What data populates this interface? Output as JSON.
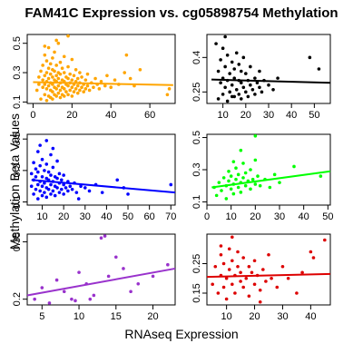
{
  "figure": {
    "title": "FAM41C Expression vs. cg05898754 Methylation",
    "ylabel": "Methylation Beta Values",
    "xlabel": "RNAseq Expression"
  },
  "chart_data": [
    {
      "type": "scatter",
      "color": "#FFA500",
      "xlim": [
        -3,
        73
      ],
      "ylim": [
        0.09,
        0.56
      ],
      "xticks": [
        0,
        20,
        40,
        60
      ],
      "yticks": [
        0.1,
        0.3,
        0.5
      ],
      "fit": [
        [
          0,
          0.235
        ],
        [
          72,
          0.215
        ]
      ],
      "points": [
        [
          2,
          0.18
        ],
        [
          3,
          0.22
        ],
        [
          3,
          0.27
        ],
        [
          4,
          0.12
        ],
        [
          4,
          0.31
        ],
        [
          5,
          0.2
        ],
        [
          5,
          0.25
        ],
        [
          5,
          0.35
        ],
        [
          6,
          0.15
        ],
        [
          6,
          0.22
        ],
        [
          6,
          0.28
        ],
        [
          6,
          0.42
        ],
        [
          7,
          0.11
        ],
        [
          7,
          0.19
        ],
        [
          7,
          0.24
        ],
        [
          7,
          0.3
        ],
        [
          7,
          0.38
        ],
        [
          8,
          0.14
        ],
        [
          8,
          0.21
        ],
        [
          8,
          0.26
        ],
        [
          8,
          0.33
        ],
        [
          8,
          0.47
        ],
        [
          9,
          0.13
        ],
        [
          9,
          0.18
        ],
        [
          9,
          0.23
        ],
        [
          9,
          0.29
        ],
        [
          9,
          0.36
        ],
        [
          10,
          0.12
        ],
        [
          10,
          0.17
        ],
        [
          10,
          0.22
        ],
        [
          10,
          0.27
        ],
        [
          10,
          0.32
        ],
        [
          10,
          0.4
        ],
        [
          11,
          0.15
        ],
        [
          11,
          0.2
        ],
        [
          11,
          0.25
        ],
        [
          11,
          0.31
        ],
        [
          11,
          0.44
        ],
        [
          12,
          0.14
        ],
        [
          12,
          0.19
        ],
        [
          12,
          0.24
        ],
        [
          12,
          0.28
        ],
        [
          12,
          0.35
        ],
        [
          13,
          0.16
        ],
        [
          13,
          0.21
        ],
        [
          13,
          0.26
        ],
        [
          13,
          0.3
        ],
        [
          13,
          0.5
        ],
        [
          14,
          0.13
        ],
        [
          14,
          0.18
        ],
        [
          14,
          0.23
        ],
        [
          14,
          0.29
        ],
        [
          14,
          0.37
        ],
        [
          15,
          0.15
        ],
        [
          15,
          0.2
        ],
        [
          15,
          0.25
        ],
        [
          15,
          0.33
        ],
        [
          16,
          0.14
        ],
        [
          16,
          0.19
        ],
        [
          16,
          0.24
        ],
        [
          16,
          0.3
        ],
        [
          16,
          0.41
        ],
        [
          17,
          0.17
        ],
        [
          17,
          0.22
        ],
        [
          17,
          0.27
        ],
        [
          18,
          0.15
        ],
        [
          18,
          0.21
        ],
        [
          18,
          0.26
        ],
        [
          18,
          0.34
        ],
        [
          19,
          0.18
        ],
        [
          19,
          0.23
        ],
        [
          19,
          0.29
        ],
        [
          20,
          0.14
        ],
        [
          20,
          0.2
        ],
        [
          20,
          0.25
        ],
        [
          20,
          0.39
        ],
        [
          21,
          0.17
        ],
        [
          21,
          0.22
        ],
        [
          21,
          0.28
        ],
        [
          22,
          0.19
        ],
        [
          22,
          0.24
        ],
        [
          22,
          0.32
        ],
        [
          23,
          0.16
        ],
        [
          23,
          0.21
        ],
        [
          23,
          0.26
        ],
        [
          24,
          0.18
        ],
        [
          24,
          0.23
        ],
        [
          24,
          0.3
        ],
        [
          25,
          0.2
        ],
        [
          25,
          0.27
        ],
        [
          26,
          0.17
        ],
        [
          26,
          0.22
        ],
        [
          27,
          0.19
        ],
        [
          27,
          0.25
        ],
        [
          28,
          0.21
        ],
        [
          28,
          0.29
        ],
        [
          29,
          0.18
        ],
        [
          30,
          0.23
        ],
        [
          31,
          0.2
        ],
        [
          32,
          0.26
        ],
        [
          33,
          0.22
        ],
        [
          34,
          0.19
        ],
        [
          35,
          0.24
        ],
        [
          37,
          0.21
        ],
        [
          38,
          0.28
        ],
        [
          40,
          0.2
        ],
        [
          42,
          0.25
        ],
        [
          44,
          0.22
        ],
        [
          47,
          0.3
        ],
        [
          48,
          0.42
        ],
        [
          50,
          0.26
        ],
        [
          52,
          0.21
        ],
        [
          55,
          0.32
        ],
        [
          69,
          0.15
        ],
        [
          70,
          0.19
        ],
        [
          18,
          0.55
        ],
        [
          12,
          0.52
        ],
        [
          6,
          0.48
        ]
      ]
    },
    {
      "type": "scatter",
      "color": "#000000",
      "xlim": [
        3,
        57
      ],
      "ylim": [
        0.2,
        0.5
      ],
      "xticks": [
        10,
        20,
        30,
        40,
        50
      ],
      "yticks": [
        0.25,
        0.4
      ],
      "fit": [
        [
          5,
          0.304
        ],
        [
          57,
          0.29
        ]
      ],
      "points": [
        [
          8,
          0.22
        ],
        [
          8,
          0.34
        ],
        [
          9,
          0.29
        ],
        [
          9,
          0.39
        ],
        [
          10,
          0.24
        ],
        [
          10,
          0.31
        ],
        [
          10,
          0.44
        ],
        [
          11,
          0.27
        ],
        [
          11,
          0.36
        ],
        [
          12,
          0.21
        ],
        [
          12,
          0.3
        ],
        [
          12,
          0.41
        ],
        [
          13,
          0.25
        ],
        [
          13,
          0.33
        ],
        [
          14,
          0.28
        ],
        [
          14,
          0.38
        ],
        [
          15,
          0.23
        ],
        [
          15,
          0.31
        ],
        [
          15,
          0.35
        ],
        [
          16,
          0.26
        ],
        [
          16,
          0.42
        ],
        [
          17,
          0.24
        ],
        [
          17,
          0.3
        ],
        [
          17,
          0.37
        ],
        [
          18,
          0.22
        ],
        [
          18,
          0.29
        ],
        [
          18,
          0.34
        ],
        [
          19,
          0.27
        ],
        [
          19,
          0.4
        ],
        [
          20,
          0.25
        ],
        [
          20,
          0.33
        ],
        [
          21,
          0.23
        ],
        [
          21,
          0.3
        ],
        [
          22,
          0.28
        ],
        [
          22,
          0.36
        ],
        [
          23,
          0.26
        ],
        [
          24,
          0.24
        ],
        [
          24,
          0.31
        ],
        [
          25,
          0.29
        ],
        [
          26,
          0.27
        ],
        [
          27,
          0.25
        ],
        [
          28,
          0.3
        ],
        [
          30,
          0.28
        ],
        [
          32,
          0.26
        ],
        [
          34,
          0.31
        ],
        [
          11,
          0.49
        ],
        [
          48,
          0.4
        ],
        [
          52,
          0.35
        ],
        [
          7,
          0.46
        ],
        [
          14,
          0.23
        ],
        [
          26,
          0.34
        ]
      ]
    },
    {
      "type": "scatter",
      "color": "#0000FF",
      "xlim": [
        3,
        72
      ],
      "ylim": [
        0.08,
        0.53
      ],
      "xticks": [
        10,
        20,
        30,
        40,
        50,
        60,
        70
      ],
      "yticks": [
        0.1,
        0.3,
        0.5
      ],
      "fit": [
        [
          5,
          0.24
        ],
        [
          72,
          0.16
        ]
      ],
      "points": [
        [
          5,
          0.2
        ],
        [
          5,
          0.28
        ],
        [
          6,
          0.15
        ],
        [
          6,
          0.24
        ],
        [
          6,
          0.35
        ],
        [
          7,
          0.18
        ],
        [
          7,
          0.26
        ],
        [
          7,
          0.31
        ],
        [
          8,
          0.12
        ],
        [
          8,
          0.21
        ],
        [
          8,
          0.29
        ],
        [
          8,
          0.42
        ],
        [
          9,
          0.17
        ],
        [
          9,
          0.23
        ],
        [
          9,
          0.33
        ],
        [
          10,
          0.14
        ],
        [
          10,
          0.2
        ],
        [
          10,
          0.26
        ],
        [
          10,
          0.37
        ],
        [
          11,
          0.16
        ],
        [
          11,
          0.22
        ],
        [
          11,
          0.3
        ],
        [
          12,
          0.13
        ],
        [
          12,
          0.19
        ],
        [
          12,
          0.25
        ],
        [
          12,
          0.34
        ],
        [
          13,
          0.18
        ],
        [
          13,
          0.24
        ],
        [
          13,
          0.29
        ],
        [
          14,
          0.15
        ],
        [
          14,
          0.21
        ],
        [
          14,
          0.27
        ],
        [
          14,
          0.4
        ],
        [
          15,
          0.17
        ],
        [
          15,
          0.23
        ],
        [
          15,
          0.32
        ],
        [
          16,
          0.14
        ],
        [
          16,
          0.2
        ],
        [
          16,
          0.26
        ],
        [
          17,
          0.19
        ],
        [
          17,
          0.25
        ],
        [
          17,
          0.36
        ],
        [
          18,
          0.16
        ],
        [
          18,
          0.22
        ],
        [
          18,
          0.28
        ],
        [
          19,
          0.18
        ],
        [
          19,
          0.24
        ],
        [
          20,
          0.15
        ],
        [
          20,
          0.21
        ],
        [
          20,
          0.27
        ],
        [
          21,
          0.19
        ],
        [
          22,
          0.17
        ],
        [
          22,
          0.23
        ],
        [
          23,
          0.2
        ],
        [
          24,
          0.18
        ],
        [
          25,
          0.22
        ],
        [
          26,
          0.16
        ],
        [
          28,
          0.2
        ],
        [
          30,
          0.19
        ],
        [
          32,
          0.17
        ],
        [
          35,
          0.21
        ],
        [
          38,
          0.16
        ],
        [
          45,
          0.24
        ],
        [
          48,
          0.19
        ],
        [
          50,
          0.15
        ],
        [
          12,
          0.49
        ],
        [
          9,
          0.46
        ],
        [
          15,
          0.44
        ],
        [
          27,
          0.12
        ],
        [
          70,
          0.21
        ]
      ]
    },
    {
      "type": "scatter",
      "color": "#00FF00",
      "xlim": [
        0,
        51
      ],
      "ylim": [
        0.08,
        0.52
      ],
      "xticks": [
        0,
        10,
        20,
        30,
        40,
        50
      ],
      "yticks": [
        0.1,
        0.3,
        0.5
      ],
      "fit": [
        [
          2,
          0.19
        ],
        [
          51,
          0.29
        ]
      ],
      "points": [
        [
          3,
          0.19
        ],
        [
          4,
          0.14
        ],
        [
          5,
          0.22
        ],
        [
          6,
          0.17
        ],
        [
          7,
          0.25
        ],
        [
          8,
          0.2
        ],
        [
          8,
          0.12
        ],
        [
          9,
          0.23
        ],
        [
          9,
          0.29
        ],
        [
          10,
          0.18
        ],
        [
          10,
          0.26
        ],
        [
          11,
          0.21
        ],
        [
          11,
          0.15
        ],
        [
          12,
          0.24
        ],
        [
          12,
          0.31
        ],
        [
          13,
          0.19
        ],
        [
          13,
          0.27
        ],
        [
          14,
          0.22
        ],
        [
          14,
          0.16
        ],
        [
          15,
          0.25
        ],
        [
          15,
          0.34
        ],
        [
          16,
          0.2
        ],
        [
          16,
          0.28
        ],
        [
          17,
          0.23
        ],
        [
          18,
          0.18
        ],
        [
          18,
          0.3
        ],
        [
          19,
          0.24
        ],
        [
          20,
          0.21
        ],
        [
          20,
          0.36
        ],
        [
          21,
          0.26
        ],
        [
          22,
          0.2
        ],
        [
          24,
          0.24
        ],
        [
          26,
          0.19
        ],
        [
          28,
          0.27
        ],
        [
          30,
          0.22
        ],
        [
          20,
          0.51
        ],
        [
          14,
          0.42
        ],
        [
          36,
          0.32
        ],
        [
          47,
          0.26
        ],
        [
          11,
          0.35
        ]
      ]
    },
    {
      "type": "scatter",
      "color": "#9932CC",
      "xlim": [
        3,
        23
      ],
      "ylim": [
        0.185,
        0.37
      ],
      "xticks": [
        5,
        10,
        15,
        20
      ],
      "yticks": [
        0.2,
        0.35
      ],
      "fit": [
        [
          3,
          0.21
        ],
        [
          23,
          0.28
        ]
      ],
      "points": [
        [
          4,
          0.2
        ],
        [
          5,
          0.23
        ],
        [
          6,
          0.19
        ],
        [
          7,
          0.25
        ],
        [
          8,
          0.22
        ],
        [
          9,
          0.2
        ],
        [
          10,
          0.27
        ],
        [
          11,
          0.24
        ],
        [
          12,
          0.21
        ],
        [
          13,
          0.36
        ],
        [
          13.5,
          0.365
        ],
        [
          14,
          0.26
        ],
        [
          15,
          0.31
        ],
        [
          16,
          0.28
        ],
        [
          17,
          0.22
        ],
        [
          18,
          0.24
        ],
        [
          20,
          0.26
        ],
        [
          22,
          0.29
        ],
        [
          9.5,
          0.196
        ],
        [
          11.5,
          0.2
        ]
      ]
    },
    {
      "type": "scatter",
      "color": "#DD0000",
      "xlim": [
        3,
        47
      ],
      "ylim": [
        0.11,
        0.35
      ],
      "xticks": [
        10,
        20,
        30,
        40
      ],
      "yticks": [
        0.15,
        0.25
      ],
      "fit": [
        [
          3,
          0.205
        ],
        [
          47,
          0.215
        ]
      ],
      "points": [
        [
          5,
          0.18
        ],
        [
          6,
          0.24
        ],
        [
          7,
          0.15
        ],
        [
          8,
          0.21
        ],
        [
          8,
          0.28
        ],
        [
          9,
          0.17
        ],
        [
          9,
          0.25
        ],
        [
          10,
          0.2
        ],
        [
          10,
          0.13
        ],
        [
          11,
          0.23
        ],
        [
          11,
          0.3
        ],
        [
          12,
          0.18
        ],
        [
          12,
          0.26
        ],
        [
          13,
          0.21
        ],
        [
          13,
          0.15
        ],
        [
          14,
          0.24
        ],
        [
          14,
          0.29
        ],
        [
          15,
          0.19
        ],
        [
          15,
          0.22
        ],
        [
          16,
          0.17
        ],
        [
          16,
          0.27
        ],
        [
          17,
          0.2
        ],
        [
          18,
          0.24
        ],
        [
          18,
          0.14
        ],
        [
          19,
          0.22
        ],
        [
          20,
          0.18
        ],
        [
          20,
          0.26
        ],
        [
          21,
          0.21
        ],
        [
          22,
          0.16
        ],
        [
          23,
          0.23
        ],
        [
          24,
          0.19
        ],
        [
          25,
          0.28
        ],
        [
          26,
          0.2
        ],
        [
          28,
          0.17
        ],
        [
          30,
          0.24
        ],
        [
          32,
          0.2
        ],
        [
          35,
          0.15
        ],
        [
          37,
          0.22
        ],
        [
          40,
          0.29
        ],
        [
          41,
          0.27
        ],
        [
          45,
          0.33
        ],
        [
          12,
          0.34
        ],
        [
          8,
          0.31
        ],
        [
          22,
          0.12
        ]
      ]
    }
  ]
}
